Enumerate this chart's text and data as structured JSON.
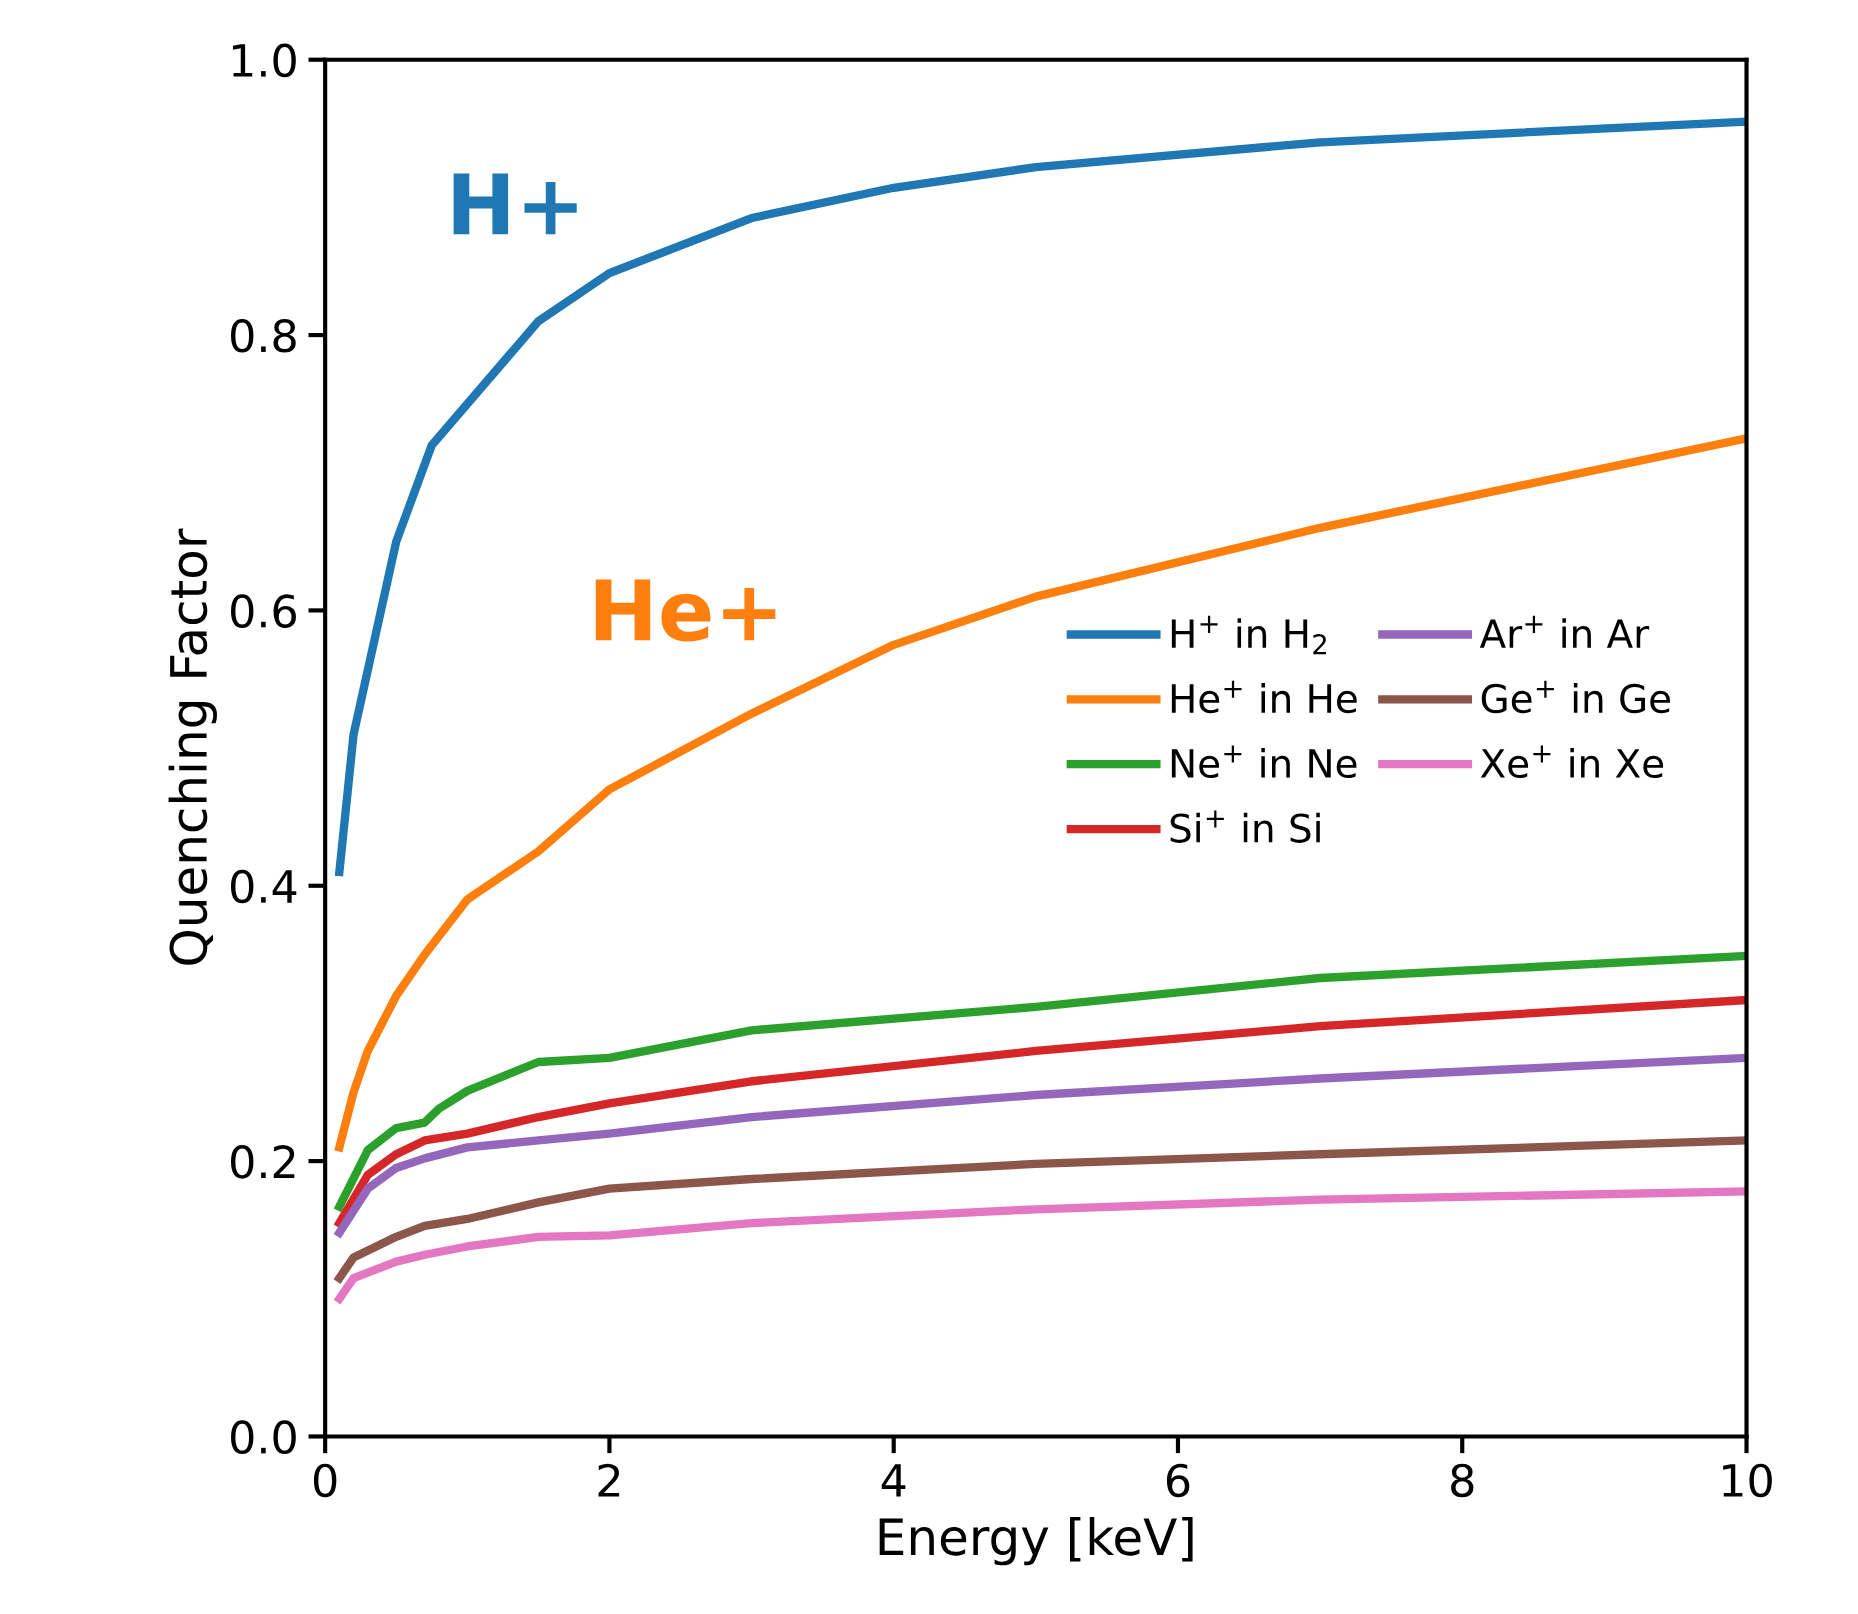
{
  "chart_data": {
    "type": "line",
    "xlabel": "Energy [keV]",
    "ylabel": "Quenching Factor",
    "xlim": [
      0,
      10
    ],
    "ylim": [
      0,
      1.0
    ],
    "xticks": [
      0,
      2,
      4,
      6,
      8,
      10
    ],
    "yticks": [
      {
        "value": 0,
        "label": "0.0"
      },
      0.2,
      0.4,
      0.6,
      0.8,
      {
        "value": 1,
        "label": "1.0"
      }
    ],
    "grid": false,
    "legend": "right",
    "marker": "none",
    "line_style": "solid",
    "annotations": [
      "H+",
      "He+"
    ],
    "series": [
      {
        "name": "H$^{+}$ in H$_{2}$",
        "color": "#1f77b4",
        "x": [
          0.1,
          0.2,
          0.5,
          0.75,
          1.5,
          2,
          3,
          4,
          5,
          7,
          10
        ],
        "values": [
          0.41,
          0.51,
          0.65,
          0.72,
          0.81,
          0.845,
          0.885,
          0.907,
          0.922,
          0.94,
          0.955
        ]
      },
      {
        "name": "He$^{+}$ in He",
        "color": "#ff7f0e",
        "x": [
          0.1,
          0.2,
          0.3,
          0.5,
          0.7,
          1,
          1.5,
          2,
          3,
          4,
          5,
          7,
          10
        ],
        "values": [
          0.21,
          0.25,
          0.28,
          0.32,
          0.35,
          0.39,
          0.425,
          0.47,
          0.525,
          0.575,
          0.61,
          0.66,
          0.725
        ]
      },
      {
        "name": "Ne$^{+}$ in Ne",
        "color": "#2ca02c",
        "x": [
          0.1,
          0.3,
          0.5,
          0.7,
          0.8,
          1,
          1.5,
          2,
          3,
          5,
          7,
          10
        ],
        "values": [
          0.167,
          0.208,
          0.224,
          0.228,
          0.238,
          0.251,
          0.272,
          0.275,
          0.295,
          0.312,
          0.333,
          0.349
        ]
      },
      {
        "name": "Si$^{+}$ in Si",
        "color": "#d62728",
        "x": [
          0.1,
          0.3,
          0.5,
          0.7,
          1,
          1.5,
          2,
          3,
          5,
          7,
          10
        ],
        "values": [
          0.155,
          0.19,
          0.205,
          0.215,
          0.22,
          0.232,
          0.242,
          0.258,
          0.28,
          0.298,
          0.317
        ]
      },
      {
        "name": "Ar$^{+}$ in Ar",
        "color": "#9467bd",
        "x": [
          0.1,
          0.3,
          0.5,
          0.7,
          1,
          1.5,
          2,
          3,
          5,
          7,
          10
        ],
        "values": [
          0.148,
          0.18,
          0.195,
          0.202,
          0.21,
          0.215,
          0.22,
          0.232,
          0.248,
          0.26,
          0.275
        ]
      },
      {
        "name": "Ge$^{+}$ in Ge",
        "color": "#8c564b",
        "x": [
          0.1,
          0.2,
          0.5,
          0.7,
          1,
          1.5,
          2,
          3,
          5,
          7,
          10
        ],
        "values": [
          0.115,
          0.13,
          0.145,
          0.153,
          0.158,
          0.17,
          0.18,
          0.187,
          0.198,
          0.205,
          0.215
        ]
      },
      {
        "name": "Xe$^{+}$ in Xe",
        "color": "#e377c2",
        "x": [
          0.1,
          0.2,
          0.5,
          0.7,
          1,
          1.5,
          2,
          3,
          5,
          7,
          10
        ],
        "values": [
          0.1,
          0.115,
          0.127,
          0.132,
          0.138,
          0.145,
          0.146,
          0.155,
          0.165,
          0.172,
          0.178
        ]
      }
    ]
  }
}
